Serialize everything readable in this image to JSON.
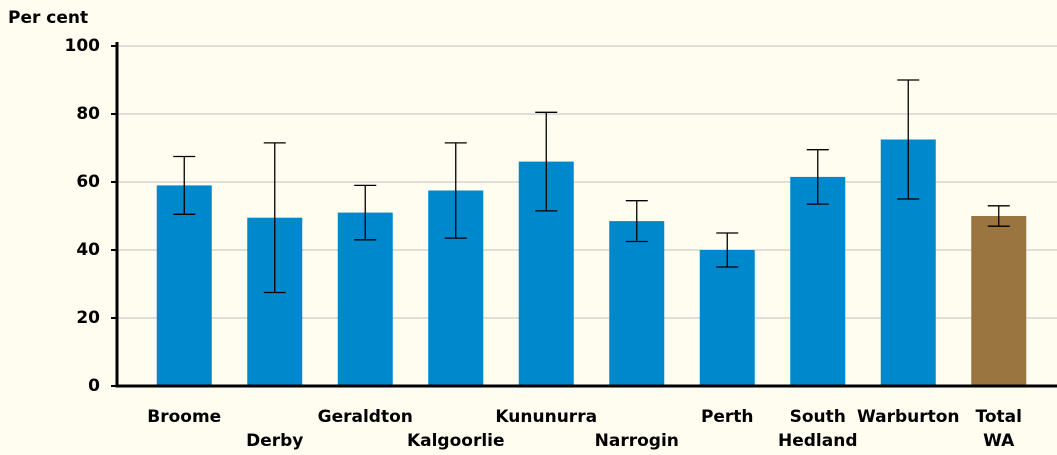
{
  "chart_data": {
    "type": "bar",
    "y_axis_label": "Per cent",
    "categories": [
      [
        "Broome"
      ],
      [
        "Derby"
      ],
      [
        "Geraldton"
      ],
      [
        "Kalgoorlie"
      ],
      [
        "Kununurra"
      ],
      [
        "Narrogin"
      ],
      [
        "Perth"
      ],
      [
        "South",
        "Hedland"
      ],
      [
        "Warburton"
      ],
      [
        "Total",
        "WA"
      ]
    ],
    "values": [
      59,
      49.5,
      51,
      57.5,
      66,
      48.5,
      40,
      61.5,
      72.5,
      50
    ],
    "errors": [
      8.5,
      22,
      8,
      14,
      14.5,
      6,
      5,
      8,
      17.5,
      3
    ],
    "colors": [
      "#0088cc",
      "#0088cc",
      "#0088cc",
      "#0088cc",
      "#0088cc",
      "#0088cc",
      "#0088cc",
      "#0088cc",
      "#0088cc",
      "#9b7540"
    ],
    "ylim": [
      0,
      100
    ],
    "yticks": [
      0,
      20,
      40,
      60,
      80,
      100
    ],
    "grid": true
  }
}
